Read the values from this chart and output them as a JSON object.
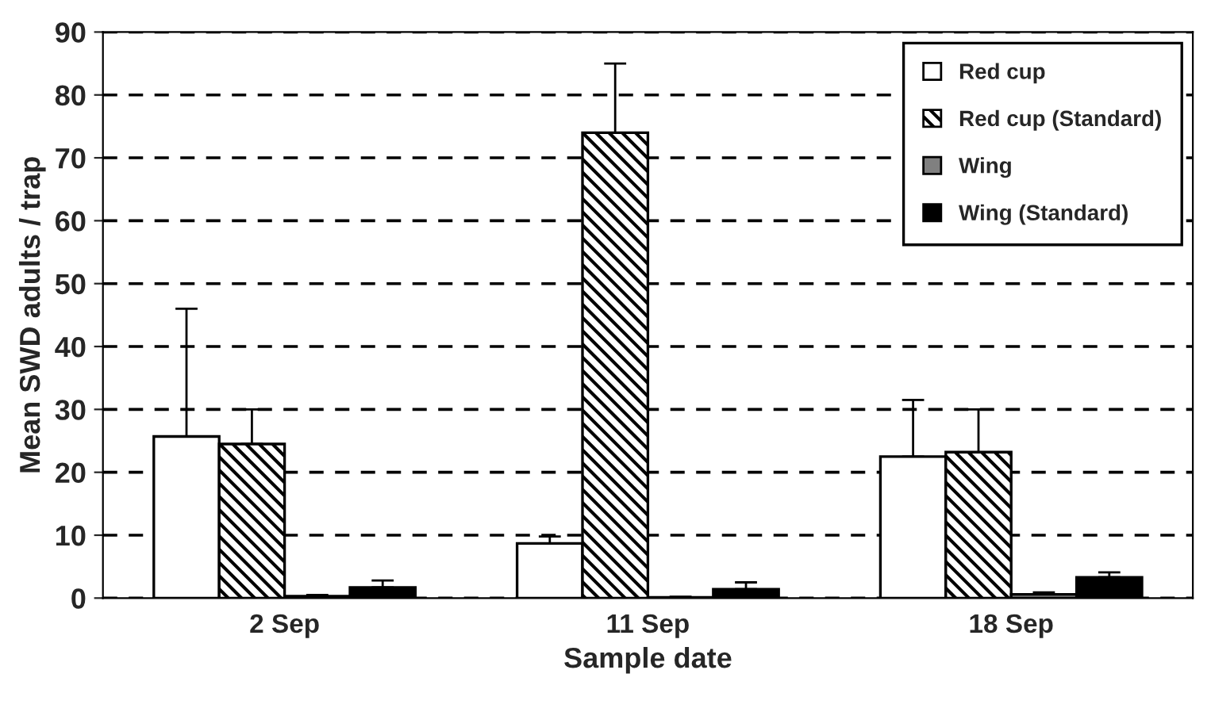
{
  "chart_data": {
    "type": "bar",
    "xlabel": "Sample date",
    "ylabel": "Mean SWD adults / trap",
    "categories": [
      "2 Sep",
      "11 Sep",
      "18 Sep"
    ],
    "series": [
      {
        "name": "Red cup",
        "color": "#ffffff",
        "values": [
          25.7,
          8.7,
          22.5
        ],
        "errors": [
          20.3,
          1.1,
          9
        ]
      },
      {
        "name": "Red cup (Standard)",
        "color": "#000000",
        "values": [
          24.5,
          74,
          23.2
        ],
        "errors": [
          5.5,
          11,
          6.8
        ]
      },
      {
        "name": "Wing",
        "color": "#808080",
        "values": [
          0.3,
          0.1,
          0.6
        ],
        "errors": [
          0.2,
          0.1,
          0.3
        ]
      },
      {
        "name": "Wing (Standard)",
        "color": "#000000",
        "values": [
          1.7,
          1.4,
          3.3
        ],
        "errors": [
          1.1,
          1.1,
          0.8
        ]
      }
    ],
    "ylim": [
      0,
      90
    ],
    "yticks": [
      0,
      10,
      20,
      30,
      40,
      50,
      60,
      70,
      80,
      90
    ],
    "grid": "y",
    "legend": "top right"
  }
}
